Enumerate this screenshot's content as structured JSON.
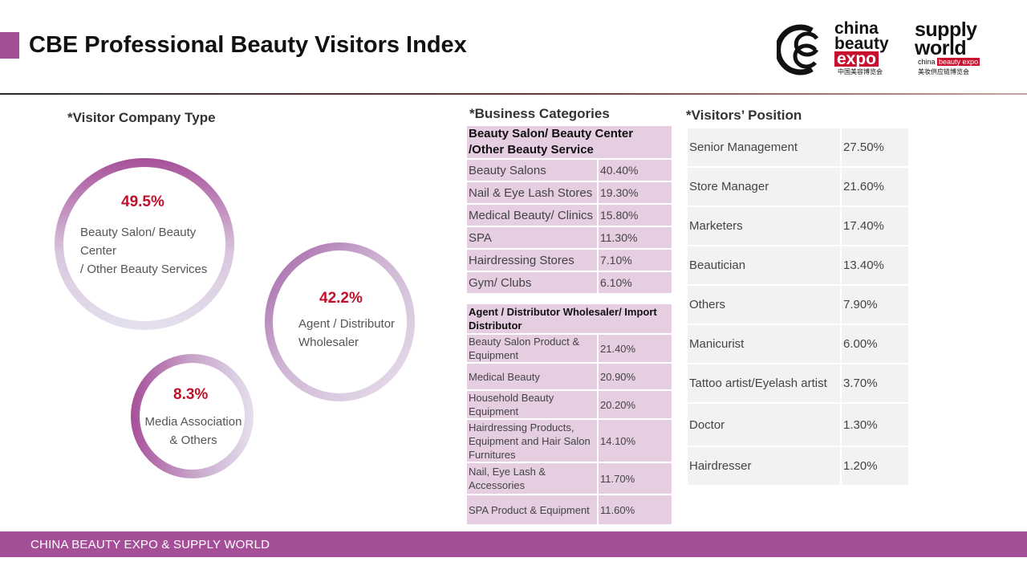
{
  "header": {
    "title": "CBE Professional Beauty Visitors Index"
  },
  "logos": {
    "cbe": {
      "line1": "china",
      "line2": "beauty",
      "line3": "expo",
      "chinese": "中国美容博览会"
    },
    "supply_world": {
      "line1": "supply",
      "line2": "world",
      "small_china": "china",
      "small_beauty_expo": "beauty expo",
      "chinese": "美妆供应链博览会"
    }
  },
  "company_type": {
    "heading": "*Visitor Company Type",
    "circles": [
      {
        "percent": "49.5%",
        "label": [
          "Beauty Salon/ Beauty",
          "Center",
          "/ Other Beauty Services"
        ]
      },
      {
        "percent": "42.2%",
        "label": [
          "Agent / Distributor",
          "Wholesaler"
        ]
      },
      {
        "percent": "8.3%",
        "label": [
          "Media Association",
          "& Others"
        ]
      }
    ]
  },
  "business_categories": {
    "heading": "*Business Categories",
    "salon_table": {
      "header": "Beauty Salon/ Beauty Center /Other Beauty Service",
      "rows": [
        {
          "name": "Beauty Salons",
          "value": "40.40%"
        },
        {
          "name": "Nail & Eye Lash Stores",
          "value": "19.30%"
        },
        {
          "name": "Medical Beauty/ Clinics",
          "value": "15.80%"
        },
        {
          "name": "SPA",
          "value": "11.30%"
        },
        {
          "name": "Hairdressing Stores",
          "value": "7.10%"
        },
        {
          "name": "Gym/ Clubs",
          "value": "6.10%"
        }
      ]
    },
    "agent_table": {
      "header": "Agent / Distributor Wholesaler/ Import Distributor",
      "rows": [
        {
          "name": "Beauty Salon Product & Equipment",
          "value": "21.40%"
        },
        {
          "name": "Medical Beauty",
          "value": "20.90%"
        },
        {
          "name": "Household Beauty Equipment",
          "value": "20.20%"
        },
        {
          "name": "Hairdressing Products, Equipment and Hair Salon Furnitures",
          "value": "14.10%"
        },
        {
          "name": "Nail, Eye Lash & Accessories",
          "value": "11.70%"
        },
        {
          "name": "SPA Product & Equipment",
          "value": "11.60%"
        }
      ]
    }
  },
  "visitors_position": {
    "heading": "*Visitors’ Position",
    "rows": [
      {
        "name": "Senior Management",
        "value": "27.50%"
      },
      {
        "name": "Store Manager",
        "value": "21.60%"
      },
      {
        "name": "Marketers",
        "value": "17.40%"
      },
      {
        "name": "Beautician",
        "value": "13.40%"
      },
      {
        "name": "Others",
        "value": "7.90%"
      },
      {
        "name": "Manicurist",
        "value": "6.00%"
      },
      {
        "name": "Tattoo artist/Eyelash artist",
        "value": "3.70%"
      },
      {
        "name": "Doctor",
        "value": "1.30%"
      },
      {
        "name": "Hairdresser",
        "value": "1.20%"
      }
    ]
  },
  "footer": {
    "text": "CHINA BEAUTY EXPO & SUPPLY  WORLD"
  }
}
